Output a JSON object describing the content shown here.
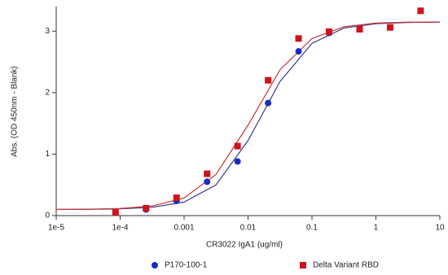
{
  "chart_data": {
    "type": "scatter",
    "xlabel": "CR3022 IgA1 (ug/ml)",
    "ylabel": "Abs. (OD 450nm - Blank)",
    "xscale": "log",
    "xlim": [
      1e-05,
      10
    ],
    "ylim": [
      0,
      3.4
    ],
    "xticks": [
      {
        "value": 1e-05,
        "label": "1e-5"
      },
      {
        "value": 0.0001,
        "label": "1e-4"
      },
      0.001,
      0.01,
      0.1,
      1,
      10
    ],
    "yticks": [
      0,
      1,
      2,
      3
    ],
    "legend": "bottom",
    "series": [
      {
        "name": "P170-100-1",
        "color": "#1a2bc4",
        "line_color": "#3a3a8c",
        "marker": "circle",
        "x": [
          0.000254,
          0.000762,
          0.00229,
          0.00686,
          0.0206,
          0.0617,
          0.185
        ],
        "values": [
          0.1,
          0.24,
          0.55,
          0.88,
          1.83,
          2.67,
          2.97
        ],
        "fit": {
          "x": [
            1e-05,
            3.16e-05,
            0.0001,
            0.000316,
            0.001,
            0.00316,
            0.01,
            0.0316,
            0.1,
            0.316,
            1,
            3.16,
            10
          ],
          "values": [
            0.1,
            0.102,
            0.11,
            0.135,
            0.22,
            0.5,
            1.22,
            2.18,
            2.8,
            3.05,
            3.12,
            3.14,
            3.145
          ]
        }
      },
      {
        "name": "Delta Variant RBD",
        "color": "#d0121c",
        "line_color": "#c8323a",
        "marker": "square",
        "x": [
          8.47e-05,
          0.000254,
          0.000762,
          0.00229,
          0.00686,
          0.0206,
          0.0617,
          0.185,
          0.556,
          1.667,
          5
        ],
        "values": [
          0.05,
          0.12,
          0.29,
          0.68,
          1.13,
          2.2,
          2.88,
          2.99,
          3.03,
          3.06,
          3.33
        ],
        "fit": {
          "x": [
            1e-05,
            3.16e-05,
            0.0001,
            0.000316,
            0.001,
            0.00316,
            0.01,
            0.0316,
            0.1,
            0.316,
            1,
            3.16,
            10
          ],
          "values": [
            0.101,
            0.104,
            0.116,
            0.155,
            0.286,
            0.67,
            1.47,
            2.37,
            2.88,
            3.07,
            3.13,
            3.145,
            3.148
          ]
        }
      }
    ]
  }
}
